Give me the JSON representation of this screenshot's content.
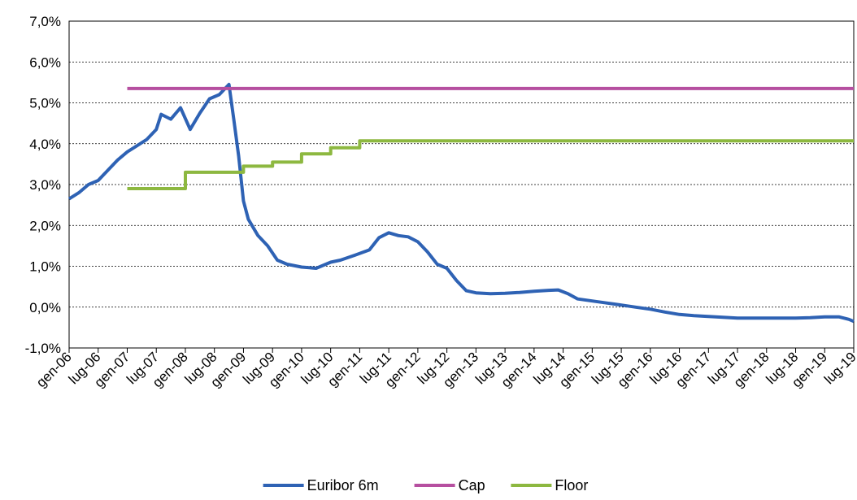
{
  "chart_data": {
    "type": "line",
    "title": "",
    "xlabel": "",
    "ylabel": "",
    "x_range": [
      "2006-01",
      "2019-07"
    ],
    "ylim": [
      -1.0,
      7.0
    ],
    "y_ticks": [
      -1.0,
      0.0,
      1.0,
      2.0,
      3.0,
      4.0,
      5.0,
      6.0,
      7.0
    ],
    "y_tick_labels": [
      "-1,0%",
      "0,0%",
      "1,0%",
      "2,0%",
      "3,0%",
      "4,0%",
      "5,0%",
      "6,0%",
      "7,0%"
    ],
    "x_ticks": [
      "2006-01",
      "2006-07",
      "2007-01",
      "2007-07",
      "2008-01",
      "2008-07",
      "2009-01",
      "2009-07",
      "2010-01",
      "2010-07",
      "2011-01",
      "2011-07",
      "2012-01",
      "2012-07",
      "2013-01",
      "2013-07",
      "2014-01",
      "2014-07",
      "2015-01",
      "2015-07",
      "2016-01",
      "2016-07",
      "2017-01",
      "2017-07",
      "2018-01",
      "2018-07",
      "2019-01",
      "2019-07"
    ],
    "x_tick_labels": [
      "gen-06",
      "lug-06",
      "gen-07",
      "lug-07",
      "gen-08",
      "lug-08",
      "gen-09",
      "lug-09",
      "gen-10",
      "lug-10",
      "gen-11",
      "lug-11",
      "gen-12",
      "lug-12",
      "gen-13",
      "lug-13",
      "gen-14",
      "lug-14",
      "gen-15",
      "lug-15",
      "gen-16",
      "lug-16",
      "gen-17",
      "lug-17",
      "gen-18",
      "lug-18",
      "gen-19",
      "lug-19"
    ],
    "grid": "horizontal-dashed",
    "legend_position": "bottom",
    "series": [
      {
        "name": "Euribor 6m",
        "color": "#2E62B4",
        "points": [
          [
            "2006-01",
            2.65
          ],
          [
            "2006-03",
            2.8
          ],
          [
            "2006-05",
            3.0
          ],
          [
            "2006-07",
            3.1
          ],
          [
            "2006-09",
            3.35
          ],
          [
            "2006-11",
            3.6
          ],
          [
            "2007-01",
            3.8
          ],
          [
            "2007-03",
            3.95
          ],
          [
            "2007-05",
            4.1
          ],
          [
            "2007-07",
            4.35
          ],
          [
            "2007-08",
            4.72
          ],
          [
            "2007-10",
            4.6
          ],
          [
            "2007-12",
            4.88
          ],
          [
            "2008-02",
            4.35
          ],
          [
            "2008-04",
            4.75
          ],
          [
            "2008-06",
            5.1
          ],
          [
            "2008-08",
            5.2
          ],
          [
            "2008-10",
            5.45
          ],
          [
            "2008-11",
            4.6
          ],
          [
            "2008-12",
            3.7
          ],
          [
            "2009-01",
            2.6
          ],
          [
            "2009-02",
            2.15
          ],
          [
            "2009-04",
            1.75
          ],
          [
            "2009-06",
            1.5
          ],
          [
            "2009-08",
            1.15
          ],
          [
            "2009-10",
            1.05
          ],
          [
            "2010-01",
            0.98
          ],
          [
            "2010-04",
            0.95
          ],
          [
            "2010-07",
            1.1
          ],
          [
            "2010-09",
            1.15
          ],
          [
            "2010-12",
            1.27
          ],
          [
            "2011-03",
            1.4
          ],
          [
            "2011-05",
            1.7
          ],
          [
            "2011-07",
            1.82
          ],
          [
            "2011-09",
            1.75
          ],
          [
            "2011-11",
            1.72
          ],
          [
            "2012-01",
            1.6
          ],
          [
            "2012-03",
            1.35
          ],
          [
            "2012-05",
            1.05
          ],
          [
            "2012-07",
            0.95
          ],
          [
            "2012-09",
            0.65
          ],
          [
            "2012-11",
            0.4
          ],
          [
            "2013-01",
            0.35
          ],
          [
            "2013-04",
            0.33
          ],
          [
            "2013-07",
            0.34
          ],
          [
            "2013-10",
            0.36
          ],
          [
            "2014-01",
            0.39
          ],
          [
            "2014-04",
            0.41
          ],
          [
            "2014-06",
            0.42
          ],
          [
            "2014-08",
            0.33
          ],
          [
            "2014-10",
            0.2
          ],
          [
            "2015-01",
            0.15
          ],
          [
            "2015-04",
            0.1
          ],
          [
            "2015-07",
            0.05
          ],
          [
            "2015-10",
            0.0
          ],
          [
            "2016-01",
            -0.05
          ],
          [
            "2016-04",
            -0.12
          ],
          [
            "2016-07",
            -0.18
          ],
          [
            "2016-10",
            -0.21
          ],
          [
            "2017-01",
            -0.23
          ],
          [
            "2017-04",
            -0.25
          ],
          [
            "2017-07",
            -0.27
          ],
          [
            "2017-10",
            -0.27
          ],
          [
            "2018-01",
            -0.27
          ],
          [
            "2018-04",
            -0.27
          ],
          [
            "2018-07",
            -0.27
          ],
          [
            "2018-10",
            -0.26
          ],
          [
            "2019-01",
            -0.24
          ],
          [
            "2019-04",
            -0.24
          ],
          [
            "2019-06",
            -0.3
          ],
          [
            "2019-07",
            -0.35
          ]
        ]
      },
      {
        "name": "Cap",
        "color": "#B64FA0",
        "points": [
          [
            "2007-01",
            5.35
          ],
          [
            "2019-07",
            5.35
          ]
        ]
      },
      {
        "name": "Floor",
        "color": "#8DB840",
        "step": true,
        "points": [
          [
            "2007-01",
            2.9
          ],
          [
            "2008-01",
            3.2
          ],
          [
            "2008-01",
            3.3
          ],
          [
            "2009-01",
            3.45
          ],
          [
            "2009-07",
            3.55
          ],
          [
            "2010-01",
            3.75
          ],
          [
            "2010-07",
            3.9
          ],
          [
            "2011-01",
            3.97
          ],
          [
            "2011-01",
            4.07
          ],
          [
            "2019-07",
            4.07
          ]
        ]
      }
    ]
  }
}
